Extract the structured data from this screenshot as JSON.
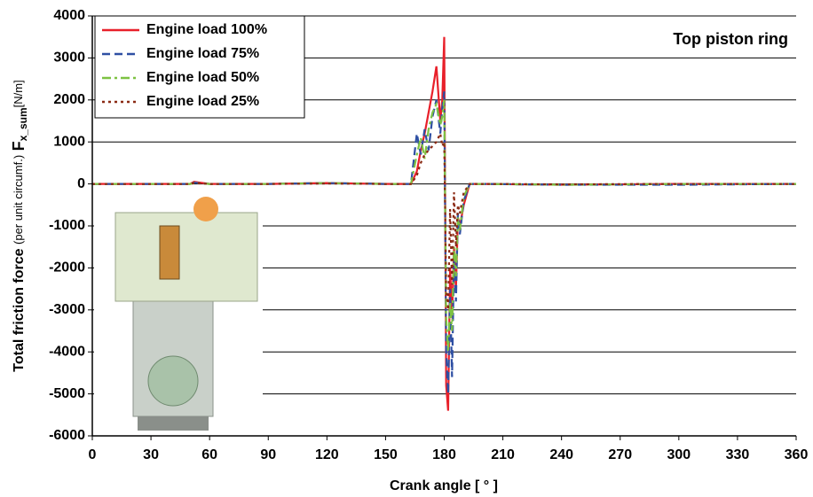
{
  "chart_data": {
    "type": "line",
    "ylabel": {
      "main": "Total friction force",
      "note": "(per unit circumf.)",
      "symbol": "F",
      "subscript": "x_sum",
      "unit": "[N/m]"
    },
    "xlabel": "Crank angle [ ° ]",
    "annotation": "Top piston ring",
    "x": [
      0,
      30,
      50,
      52,
      60,
      90,
      120,
      150,
      163,
      166,
      168,
      170,
      172,
      174,
      176,
      178,
      179,
      180,
      181,
      182,
      183,
      184,
      185,
      186,
      187,
      188,
      190,
      193,
      200,
      240,
      300,
      360
    ],
    "series": [
      {
        "name": "Engine load 100%",
        "color": "#e8202a",
        "style": "solid",
        "values": [
          0,
          0,
          0,
          50,
          0,
          0,
          20,
          0,
          0,
          300,
          800,
          1200,
          1700,
          2200,
          2800,
          1500,
          2000,
          3500,
          -4800,
          -5400,
          -2000,
          -3200,
          -1500,
          -2500,
          -800,
          -1000,
          -500,
          0,
          0,
          -20,
          0,
          0
        ]
      },
      {
        "name": "Engine load 75%",
        "color": "#2e4fa3",
        "style": "dashed",
        "values": [
          0,
          0,
          0,
          30,
          0,
          0,
          20,
          0,
          0,
          1200,
          700,
          1300,
          800,
          1600,
          2000,
          1200,
          1800,
          2200,
          -4000,
          -5000,
          -2500,
          -4600,
          -1800,
          -2800,
          -700,
          -1200,
          -400,
          0,
          0,
          -20,
          -20,
          0
        ]
      },
      {
        "name": "Engine load 50%",
        "color": "#7dc242",
        "style": "dashdot",
        "values": [
          0,
          0,
          0,
          20,
          0,
          0,
          20,
          0,
          0,
          700,
          1100,
          600,
          1300,
          1700,
          1900,
          1400,
          1600,
          2000,
          -3200,
          -4000,
          -2800,
          -3500,
          -1500,
          -2200,
          -800,
          -1100,
          -300,
          0,
          0,
          -20,
          0,
          0
        ]
      },
      {
        "name": "Engine load 25%",
        "color": "#8b2a14",
        "style": "dotted",
        "values": [
          0,
          0,
          0,
          20,
          0,
          0,
          10,
          0,
          0,
          200,
          500,
          700,
          800,
          900,
          1000,
          1200,
          900,
          1000,
          -2500,
          -3000,
          -600,
          -2400,
          -200,
          -1500,
          -500,
          -700,
          -200,
          0,
          0,
          -10,
          0,
          0
        ]
      }
    ],
    "xlim": [
      0,
      360
    ],
    "xticks": [
      0,
      30,
      60,
      90,
      120,
      150,
      180,
      210,
      240,
      270,
      300,
      330,
      360
    ],
    "ylim": [
      -6000,
      4000
    ],
    "yticks": [
      -6000,
      -5000,
      -4000,
      -3000,
      -2000,
      -1000,
      0,
      1000,
      2000,
      3000,
      4000
    ],
    "grid": true,
    "legend": "top-left"
  }
}
